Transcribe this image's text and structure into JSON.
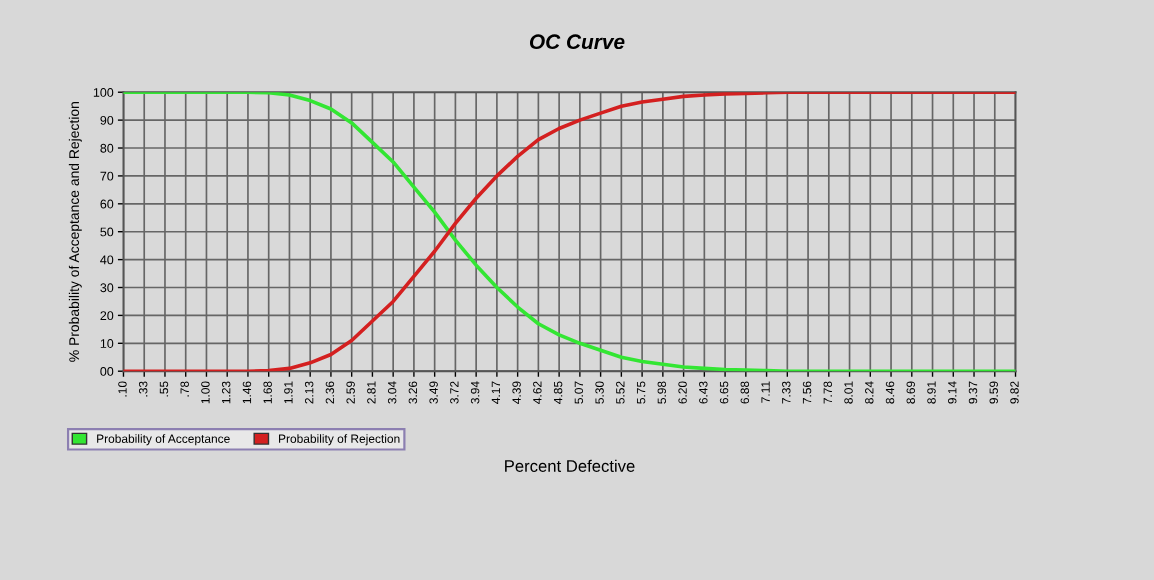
{
  "chart_data": {
    "type": "line",
    "title": "OC Curve",
    "xlabel": "Percent Defective",
    "ylabel": "% Probability of Acceptance and Rejection",
    "categories": [
      ".10",
      ".33",
      ".55",
      ".78",
      "1.00",
      "1.23",
      "1.46",
      "1.68",
      "1.91",
      "2.13",
      "2.36",
      "2.59",
      "2.81",
      "3.04",
      "3.26",
      "3.49",
      "3.72",
      "3.94",
      "4.17",
      "4.39",
      "4.62",
      "4.85",
      "5.07",
      "5.30",
      "5.52",
      "5.75",
      "5.98",
      "6.20",
      "6.43",
      "6.65",
      "6.88",
      "7.11",
      "7.33",
      "7.56",
      "7.78",
      "8.01",
      "8.24",
      "8.46",
      "8.69",
      "8.91",
      "9.14",
      "9.37",
      "9.59",
      "9.82"
    ],
    "series": [
      {
        "name": "Probability of Acceptance",
        "color": "#33e633",
        "values": [
          100,
          100,
          100,
          100,
          100,
          100,
          100,
          99.8,
          99,
          97,
          94,
          89,
          82,
          75,
          66,
          57,
          47,
          38,
          30,
          23,
          17,
          13,
          10,
          7.5,
          5,
          3.5,
          2.5,
          1.5,
          1,
          0.6,
          0.4,
          0.2,
          0,
          0,
          0,
          0,
          0,
          0,
          0,
          0,
          0,
          0,
          0,
          0
        ]
      },
      {
        "name": "Probability of Rejection",
        "color": "#d42020",
        "values": [
          0,
          0,
          0,
          0,
          0,
          0,
          0,
          0.2,
          1,
          3,
          6,
          11,
          18,
          25,
          34,
          43,
          53,
          62,
          70,
          77,
          83,
          87,
          90,
          92.5,
          95,
          96.5,
          97.5,
          98.5,
          99,
          99.4,
          99.6,
          99.8,
          100,
          100,
          100,
          100,
          100,
          100,
          100,
          100,
          100,
          100,
          100,
          100
        ]
      }
    ],
    "ylim": [
      0,
      100
    ],
    "yticks": [
      {
        "value": 0,
        "label": "00"
      },
      10,
      20,
      30,
      40,
      50,
      60,
      70,
      80,
      90,
      100
    ],
    "grid": true,
    "legend": "bottom",
    "marker": "none",
    "line_style": "solid"
  }
}
